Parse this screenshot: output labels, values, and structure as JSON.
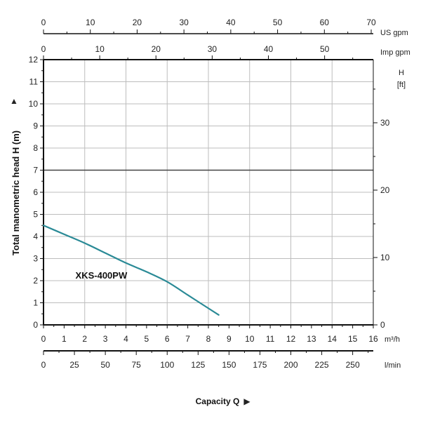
{
  "chart_data": {
    "type": "line",
    "title": "",
    "ylabel": "Total manometric head H (m)",
    "xlabel": "Capacity Q",
    "ylim": [
      0,
      12
    ],
    "y_ticks": [
      "0",
      "1",
      "2",
      "3",
      "4",
      "5",
      "6",
      "7",
      "8",
      "9",
      "10",
      "11",
      "12"
    ],
    "xlim": [
      0,
      16
    ],
    "x_ticks": [
      "0",
      "1",
      "2",
      "3",
      "4",
      "5",
      "6",
      "7",
      "8",
      "9",
      "10",
      "11",
      "12",
      "13",
      "14",
      "15",
      "16"
    ],
    "x_unit": "m³/h",
    "right_axis": {
      "label": "H",
      "unit": "[ft]",
      "ticks": [
        "0",
        "10",
        "20",
        "30"
      ],
      "tick_values_ft": [
        0,
        10,
        20,
        30
      ]
    },
    "us_gpm_axis": {
      "unit": "US gpm",
      "ticks": [
        "0",
        "10",
        "20",
        "30",
        "40",
        "50",
        "60",
        "70"
      ],
      "tick_values": [
        0,
        10,
        20,
        30,
        40,
        50,
        60,
        70
      ]
    },
    "imp_gpm_axis": {
      "unit": "Imp gpm",
      "ticks": [
        "0",
        "10",
        "20",
        "30",
        "40",
        "50"
      ],
      "tick_values": [
        0,
        10,
        20,
        30,
        40,
        50
      ]
    },
    "lmin_axis": {
      "unit": "l/min",
      "ticks": [
        "0",
        "25",
        "50",
        "75",
        "100",
        "125",
        "150",
        "175",
        "200",
        "225",
        "250"
      ],
      "tick_values": [
        0,
        25,
        50,
        75,
        100,
        125,
        150,
        175,
        200,
        225,
        250
      ]
    },
    "grid": true,
    "series": [
      {
        "name": "XKS-400PW",
        "color": "#2a8a96",
        "x": [
          0,
          1,
          2,
          3,
          4,
          5,
          6,
          7,
          8,
          8.5
        ],
        "y": [
          4.5,
          4.1,
          3.7,
          3.25,
          2.8,
          2.4,
          1.95,
          1.35,
          0.75,
          0.45
        ]
      }
    ]
  }
}
